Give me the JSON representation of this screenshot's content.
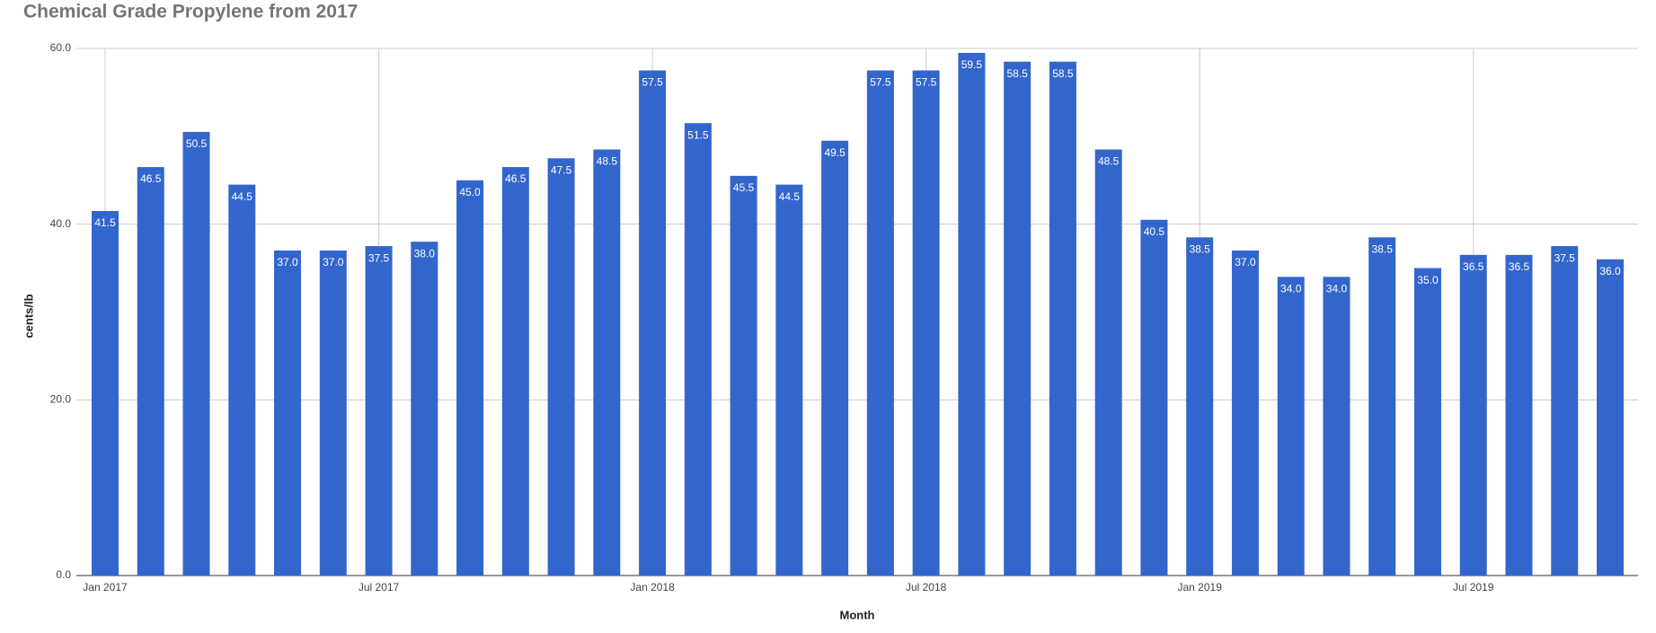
{
  "chart_data": {
    "type": "bar",
    "title": "Chemical Grade Propylene from 2017",
    "x_label": "Month",
    "y_label": "cents/lb",
    "categories": [
      "Jan 2017",
      null,
      null,
      null,
      null,
      null,
      "Jul 2017",
      null,
      null,
      null,
      null,
      null,
      "Jan 2018",
      null,
      null,
      null,
      null,
      null,
      "Jul 2018",
      null,
      null,
      null,
      null,
      null,
      "Jan 2019",
      null,
      null,
      null,
      null,
      null,
      "Jul 2019",
      null,
      null,
      null
    ],
    "values": [
      41.5,
      46.5,
      50.5,
      44.5,
      37.0,
      37.0,
      37.5,
      38.0,
      45.0,
      46.5,
      47.5,
      48.5,
      57.5,
      51.5,
      45.5,
      44.5,
      49.5,
      57.5,
      57.5,
      59.5,
      58.5,
      58.5,
      48.5,
      40.5,
      38.5,
      37.0,
      34.0,
      34.0,
      38.5,
      35.0,
      36.5,
      36.5,
      37.5,
      36.0
    ],
    "value_labels": [
      "41.5",
      "46.5",
      "50.5",
      "44.5",
      "37.0",
      "37.0",
      "37.5",
      "38.0",
      "45.0",
      "46.5",
      "47.5",
      "48.5",
      "57.5",
      "51.5",
      "45.5",
      "44.5",
      "49.5",
      "57.5",
      "57.5",
      "59.5",
      "58.5",
      "58.5",
      "48.5",
      "40.5",
      "38.5",
      "37.0",
      "34.0",
      "34.0",
      "38.5",
      "35.0",
      "36.5",
      "36.5",
      "37.5",
      "36.0"
    ],
    "color": "#3366cc",
    "ylim": [
      0,
      60
    ],
    "yticks": [
      {
        "value": 0,
        "label": "0.0"
      },
      {
        "value": 20,
        "label": "20.0"
      },
      {
        "value": 40,
        "label": "40.0"
      },
      {
        "value": 60,
        "label": "60.0"
      }
    ],
    "grid": true
  }
}
